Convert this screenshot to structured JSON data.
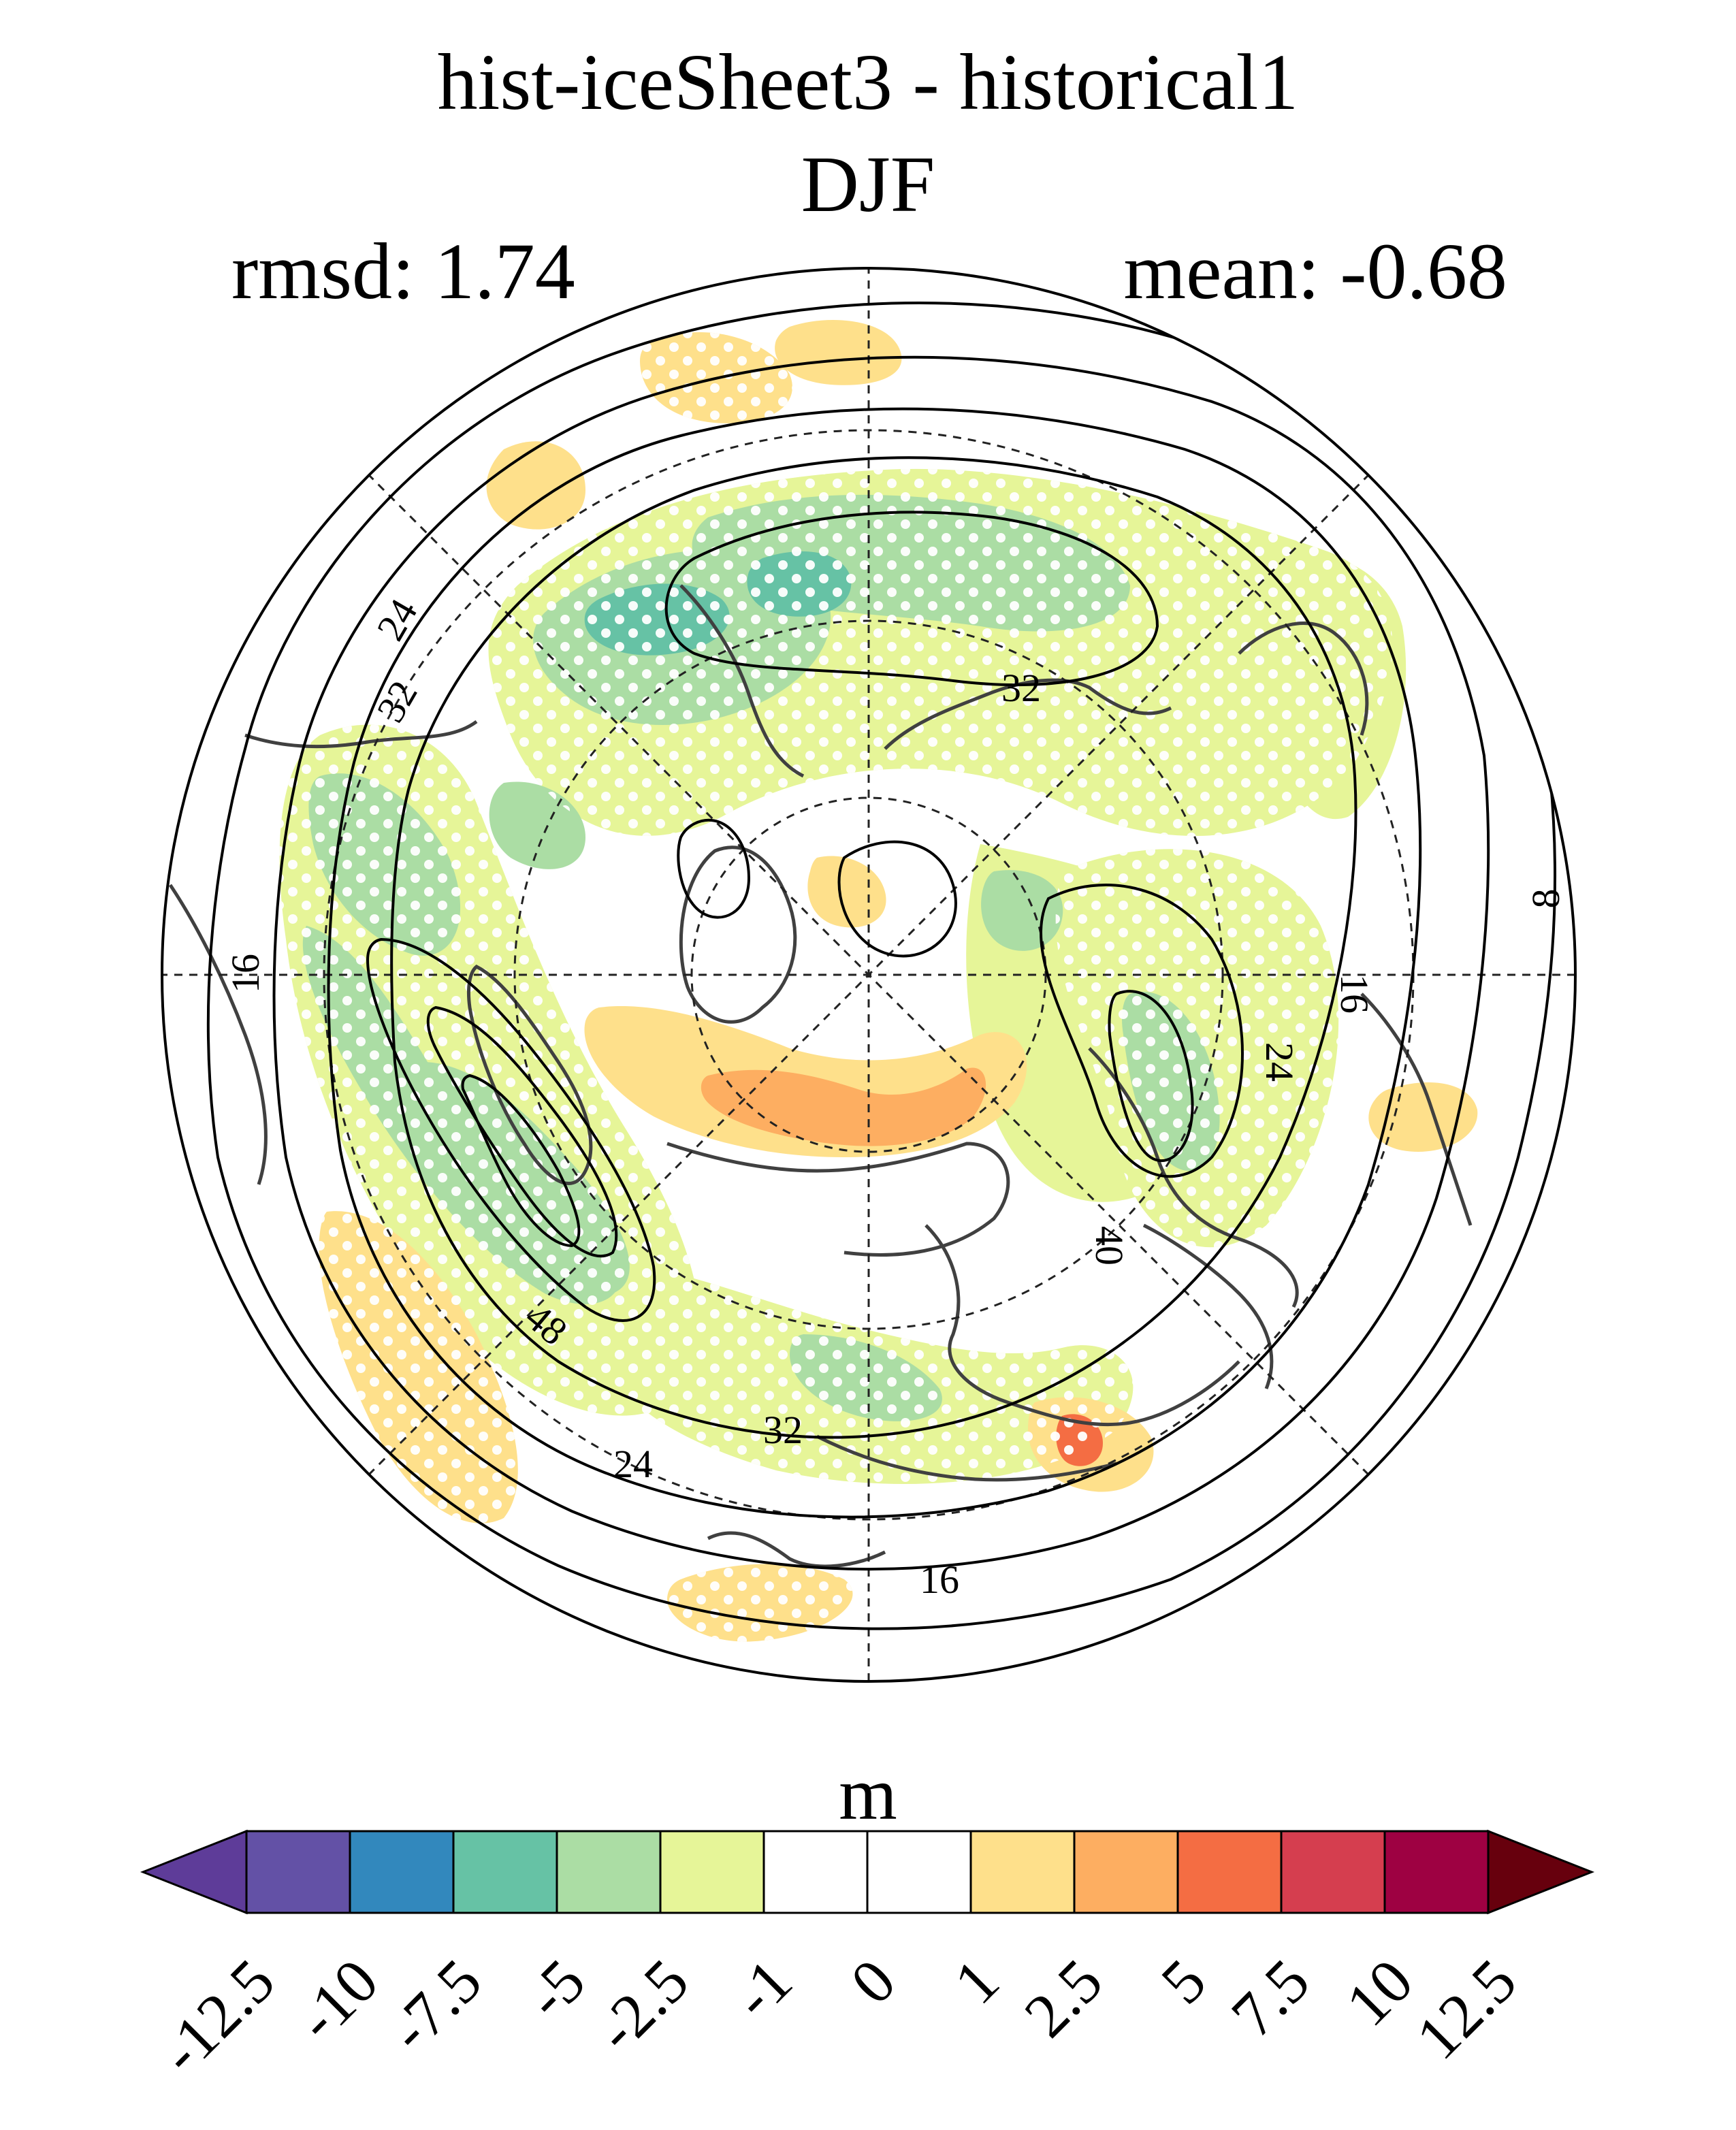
{
  "figure": {
    "title": "hist-iceSheet3 - historical1",
    "season": "DJF",
    "rmsd_label": "rmsd: 1.74",
    "mean_label": "mean: -0.68",
    "rmsd": 1.74,
    "mean": -0.68,
    "projection": "north polar stereographic",
    "stippling": "white dots mark significant differences"
  },
  "contours": {
    "labels": [
      "8",
      "16",
      "16",
      "16",
      "24",
      "24",
      "24",
      "32",
      "32",
      "32",
      "40",
      "48"
    ]
  },
  "colorbar": {
    "units": "m",
    "levels": [
      "-12.5",
      "-10",
      "-7.5",
      "-5",
      "-2.5",
      "-1",
      "0",
      "1",
      "2.5",
      "5",
      "7.5",
      "10",
      "12.5"
    ],
    "colors": [
      "#5e3c99",
      "#6351a6",
      "#3288bd",
      "#66c2a5",
      "#abdda4",
      "#e6f598",
      "#ffffff",
      "#ffffff",
      "#fee08b",
      "#fdae61",
      "#f46d43",
      "#d53e4f",
      "#9e0142",
      "#67000d"
    ]
  }
}
